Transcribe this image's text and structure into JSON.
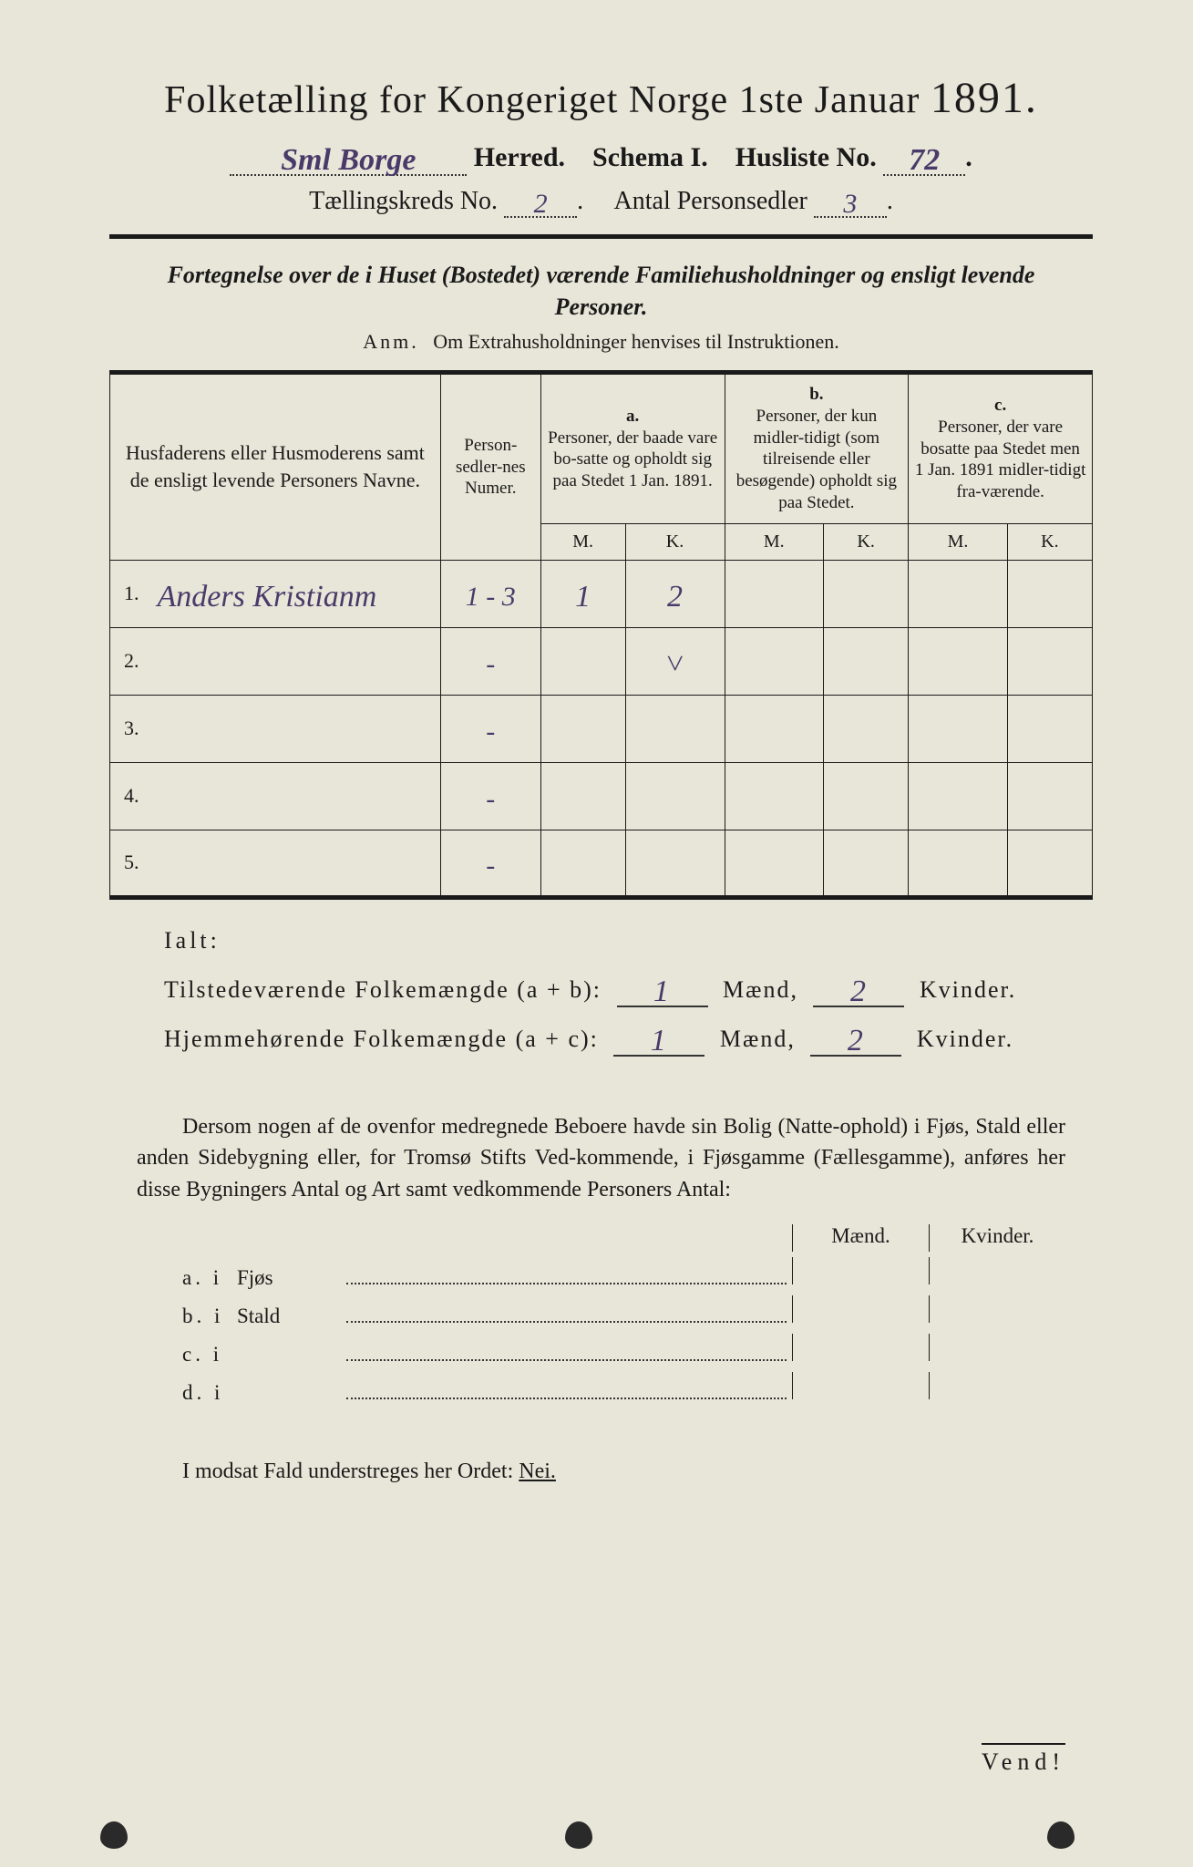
{
  "title_main": "Folketælling for Kongeriget Norge 1ste Januar ",
  "title_year": "1891.",
  "header": {
    "herred_value": "Sml Borge",
    "herred_label": " Herred.",
    "schema_label": "Schema I.",
    "husliste_label": "Husliste No.",
    "husliste_value": "72",
    "kreds_label": "Tællingskreds No.",
    "kreds_value": "2",
    "antal_label": "Antal Personsedler",
    "antal_value": "3"
  },
  "subtitle": "Fortegnelse over de i Huset (Bostedet) værende Familiehusholdninger og ensligt levende Personer.",
  "anm_label": "Anm.",
  "anm_text": "Om Extrahusholdninger henvises til Instruktionen.",
  "table": {
    "col_name": "Husfaderens eller Husmoderens samt de ensligt levende Personers Navne.",
    "col_num": "Person-sedler-nes Numer.",
    "col_a_label": "a.",
    "col_a": "Personer, der baade vare bo-satte og opholdt sig paa Stedet 1 Jan. 1891.",
    "col_b_label": "b.",
    "col_b": "Personer, der kun midler-tidigt (som tilreisende eller besøgende) opholdt sig paa Stedet.",
    "col_c_label": "c.",
    "col_c": "Personer, der vare bosatte paa Stedet men 1 Jan. 1891 midler-tidigt fra-værende.",
    "M": "M.",
    "K": "K.",
    "rows": [
      {
        "n": "1.",
        "name": "Anders Kristianm",
        "num": "1 - 3",
        "aM": "1",
        "aK": "2",
        "bM": "",
        "bK": "",
        "cM": "",
        "cK": ""
      },
      {
        "n": "2.",
        "name": "",
        "num": "-",
        "aM": "",
        "aK": "˅",
        "bM": "",
        "bK": "",
        "cM": "",
        "cK": ""
      },
      {
        "n": "3.",
        "name": "",
        "num": "-",
        "aM": "",
        "aK": "",
        "bM": "",
        "bK": "",
        "cM": "",
        "cK": ""
      },
      {
        "n": "4.",
        "name": "",
        "num": "-",
        "aM": "",
        "aK": "",
        "bM": "",
        "bK": "",
        "cM": "",
        "cK": ""
      },
      {
        "n": "5.",
        "name": "",
        "num": "-",
        "aM": "",
        "aK": "",
        "bM": "",
        "bK": "",
        "cM": "",
        "cK": ""
      }
    ]
  },
  "ialt": {
    "label": "Ialt:",
    "row1_label": "Tilstedeværende Folkemængde (a + b):",
    "row2_label": "Hjemmehørende Folkemængde (a + c):",
    "maend": "Mænd,",
    "kvinder": "Kvinder.",
    "r1M": "1",
    "r1K": "2",
    "r2M": "1",
    "r2K": "2"
  },
  "paragraph": "Dersom nogen af de ovenfor medregnede Beboere havde sin Bolig (Natte-ophold) i Fjøs, Stald eller anden Sidebygning eller, for Tromsø Stifts Ved-kommende, i Fjøsgamme (Fællesgamme), anføres her disse Bygningers Antal og Art samt vedkommende Personers Antal:",
  "sub": {
    "maend": "Mænd.",
    "kvinder": "Kvinder.",
    "rows": [
      {
        "lbl": "a. i",
        "cat": "Fjøs"
      },
      {
        "lbl": "b. i",
        "cat": "Stald"
      },
      {
        "lbl": "c. i",
        "cat": ""
      },
      {
        "lbl": "d. i",
        "cat": ""
      }
    ]
  },
  "nei_line_pre": "I modsat Fald understreges her Ordet: ",
  "nei": "Nei.",
  "vend": "Vend!",
  "colors": {
    "paper": "#e8e6d8",
    "ink": "#1a1a1a",
    "handwriting": "#4a3a6a"
  }
}
